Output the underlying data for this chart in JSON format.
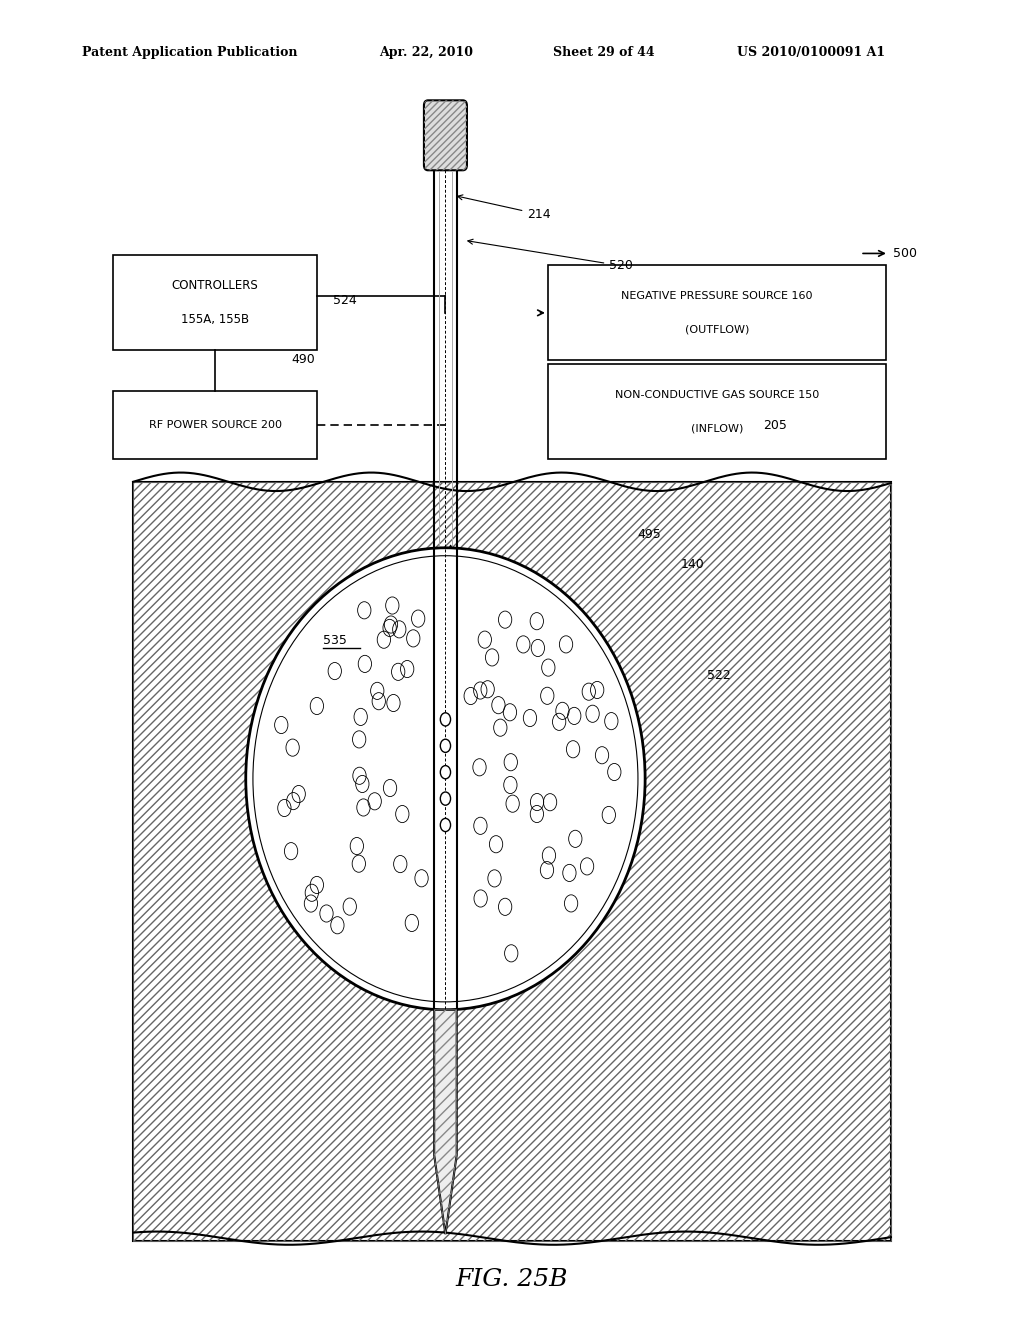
{
  "title_header": "Patent Application Publication",
  "date": "Apr. 22, 2010",
  "sheet": "Sheet 29 of 44",
  "patent_num": "US 2010/0100091 A1",
  "fig_label": "FIG. 25B",
  "bg_color": "#ffffff",
  "line_color": "#000000",
  "box_controllers_text": [
    "CONTROLLERS",
    "155A, 155B"
  ],
  "box_rf_text": [
    "RF POWER SOURCE 200"
  ],
  "box_neg_text": [
    "NEGATIVE PRESSURE SOURCE 160",
    "(OUTFLOW)"
  ],
  "box_noncond_text": [
    "NON-CONDUCTIVE GAS SOURCE 150",
    "(INFLOW)"
  ]
}
